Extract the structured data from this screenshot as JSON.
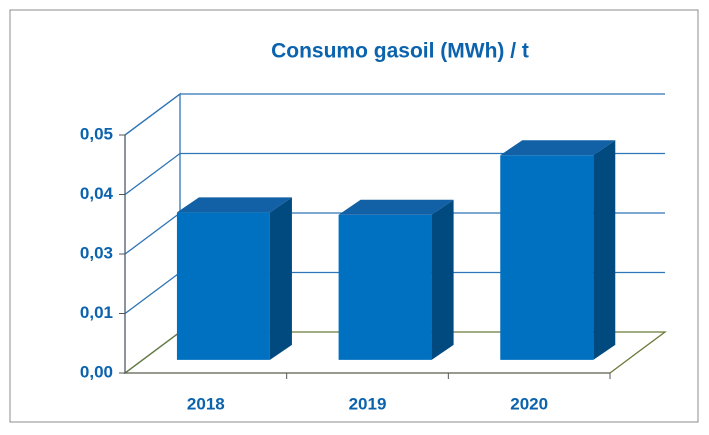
{
  "chart_data": {
    "type": "bar3d",
    "title": "Consumo gasoil (MWh) / t",
    "categories": [
      "2018",
      "2019",
      "2020"
    ],
    "values": [
      0.031,
      0.0305,
      0.043
    ],
    "color": "#0070c0",
    "ylim": [
      0,
      0.05
    ],
    "yticks": [
      {
        "value": 0,
        "label": "0,00"
      },
      {
        "value": 0.0125,
        "label": "0,01"
      },
      {
        "value": 0.025,
        "label": "0,03"
      },
      {
        "value": 0.0375,
        "label": "0,04"
      },
      {
        "value": 0.05,
        "label": "0,05"
      }
    ],
    "grid": true
  }
}
